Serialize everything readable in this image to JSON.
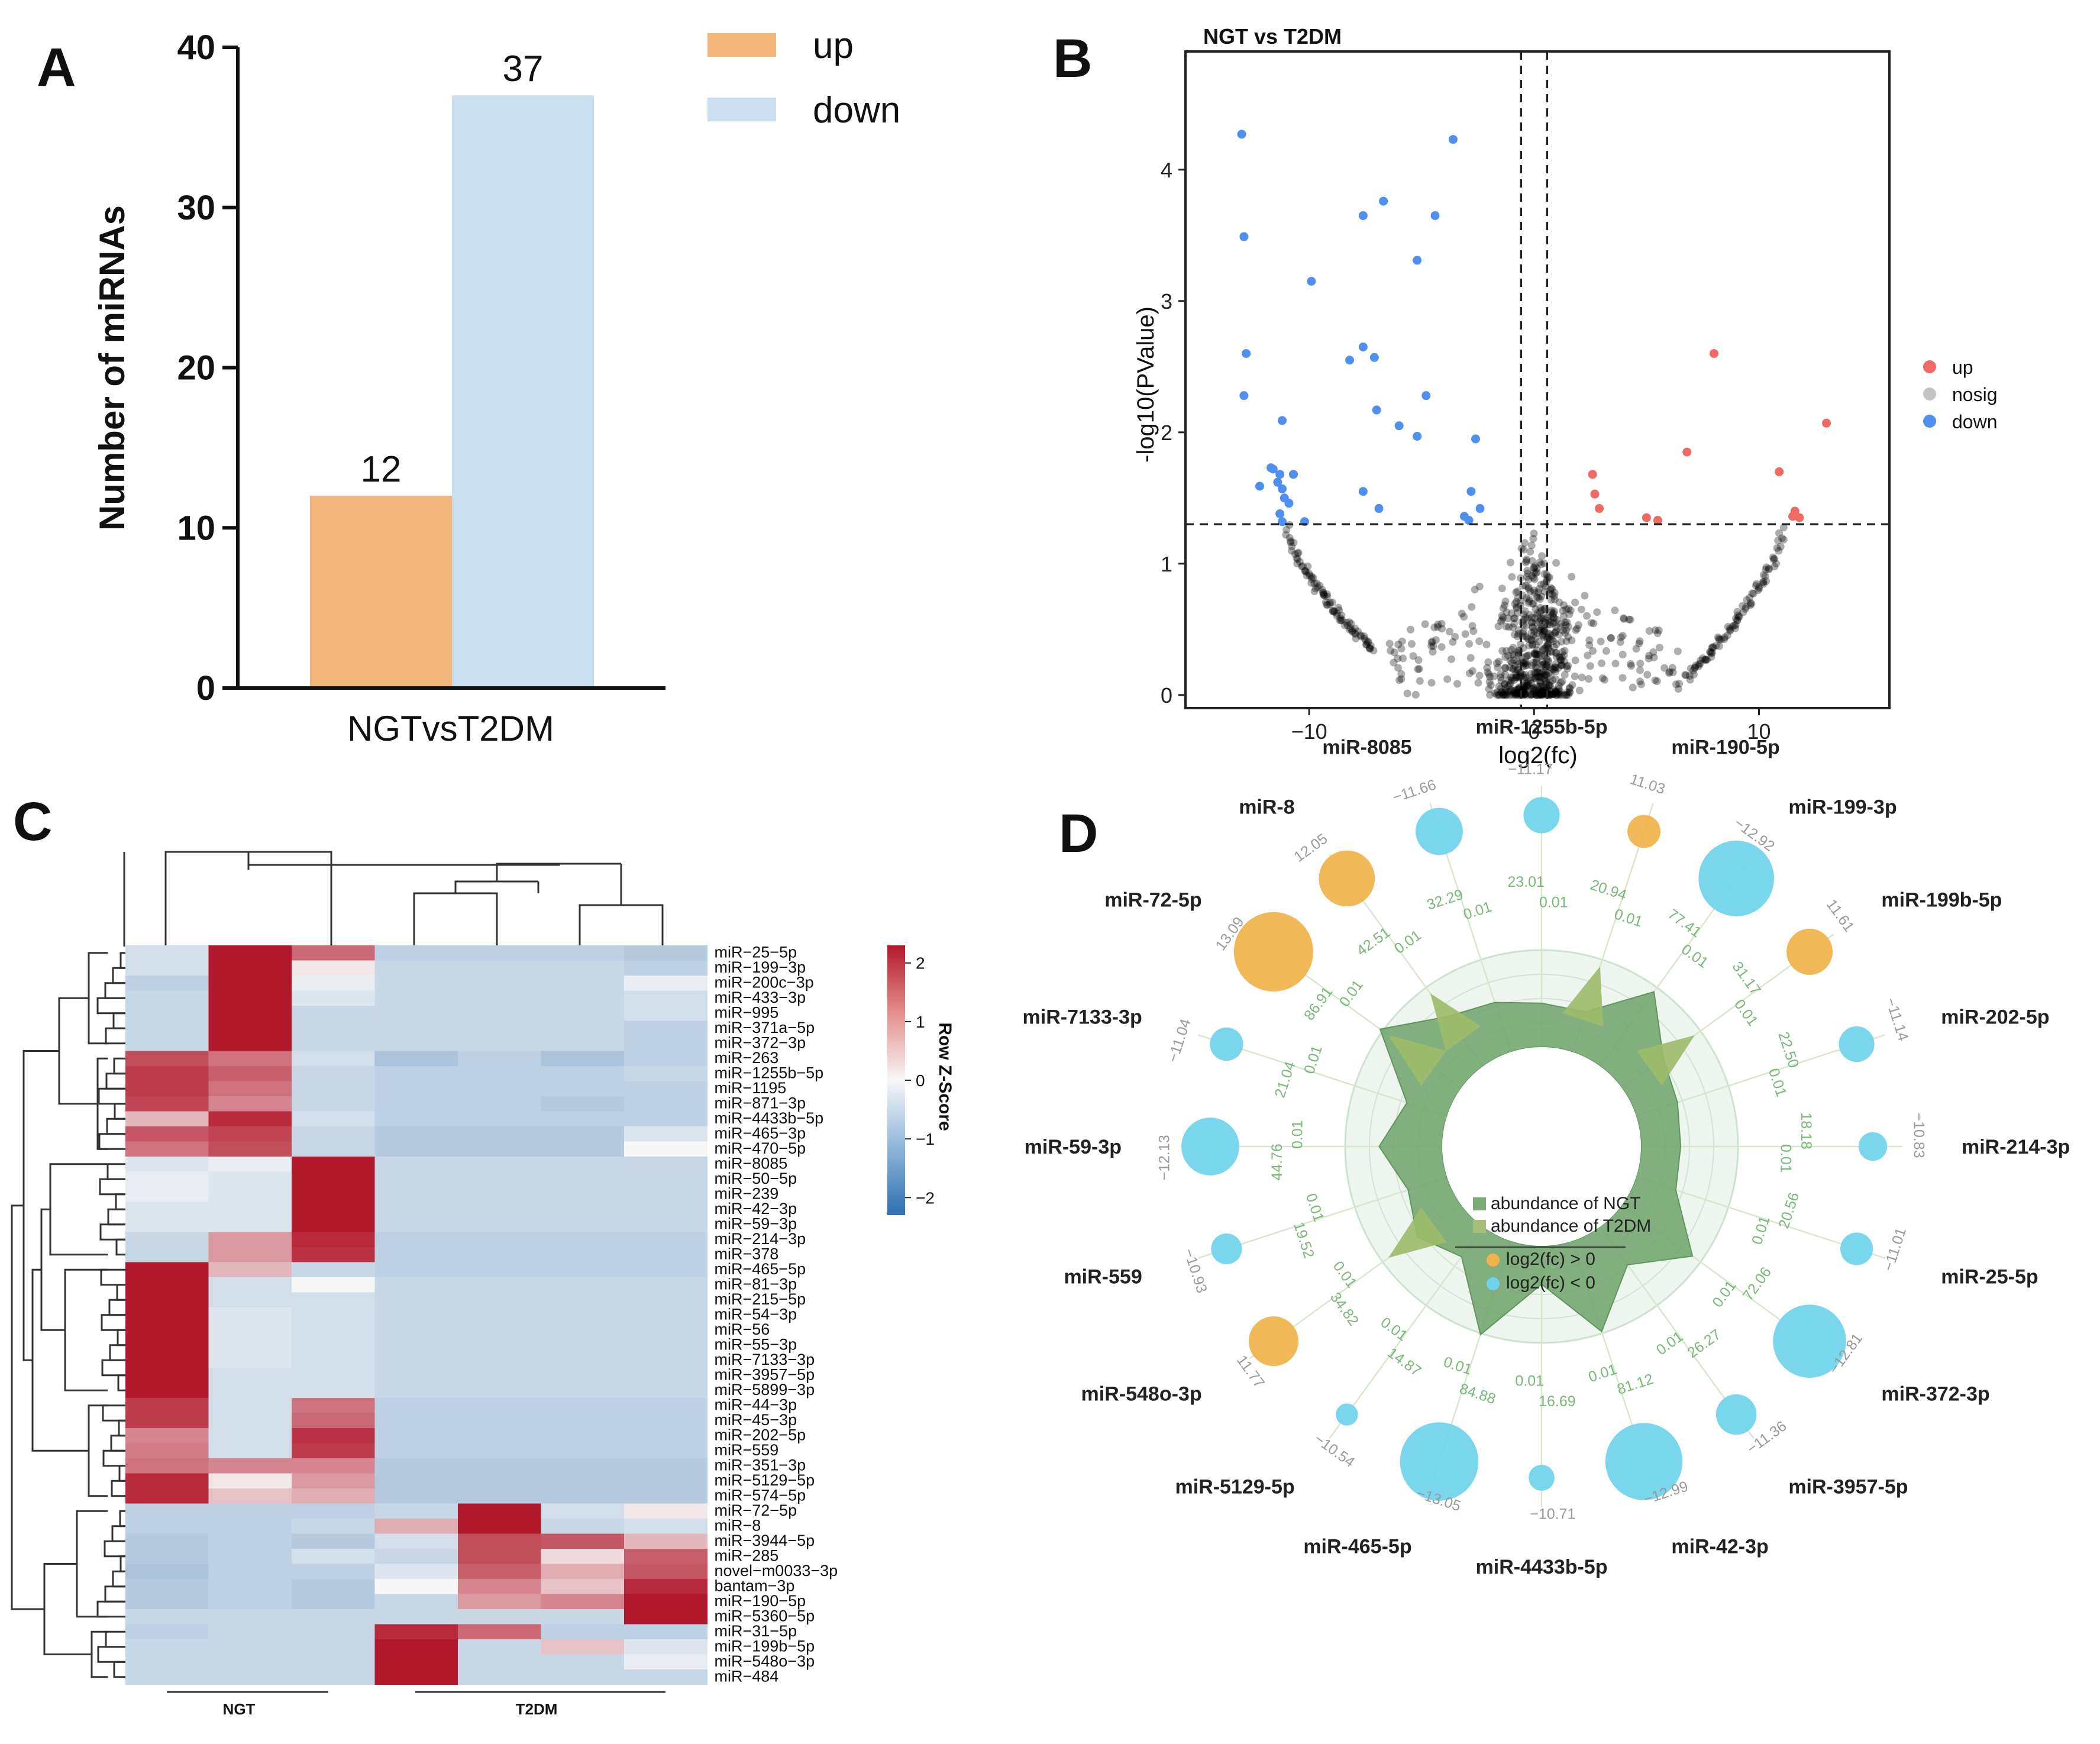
{
  "panels": {
    "a": "A",
    "b": "B",
    "c": "C",
    "d": "D"
  },
  "chart_data": [
    {
      "id": "A",
      "type": "bar",
      "categories": [
        "NGTvsT2DM"
      ],
      "series": [
        {
          "name": "up",
          "values": [
            12
          ],
          "color": "#f2b67a"
        },
        {
          "name": "down",
          "values": [
            37
          ],
          "color": "#c9dff0"
        }
      ],
      "data_labels": [
        "12",
        "37"
      ],
      "ylabel": "Number of miRNAs",
      "xlabel": "NGTvsT2DM",
      "ylim": [
        0,
        40
      ],
      "yticks": [
        "0",
        "10",
        "20",
        "30",
        "40"
      ],
      "legend": [
        "up",
        "down"
      ]
    },
    {
      "id": "B",
      "type": "scatter",
      "title": "NGT vs T2DM",
      "xlabel": "log2(fc)",
      "ylabel": "-log10(PValue)",
      "xlim": [
        -15.5,
        15.8
      ],
      "ylim": [
        -0.1,
        4.9
      ],
      "xticks": [
        "-10",
        "0",
        "10"
      ],
      "yticks": [
        "0",
        "1",
        "2",
        "3",
        "4"
      ],
      "thresholds": {
        "x": [
          -0.58,
          0.58
        ],
        "y": 1.3
      },
      "legend": [
        "up",
        "nosig",
        "down"
      ],
      "colors": {
        "up": "#ee6a63",
        "nosig": "#b3b3b3",
        "down": "#4f8ff0"
      },
      "series": [
        {
          "name": "up",
          "points": [
            [
              8.0,
              2.6
            ],
            [
              13.0,
              2.07
            ],
            [
              6.8,
              1.85
            ],
            [
              10.9,
              1.7
            ],
            [
              2.6,
              1.68
            ],
            [
              2.7,
              1.53
            ],
            [
              2.9,
              1.42
            ],
            [
              5.0,
              1.35
            ],
            [
              5.5,
              1.33
            ],
            [
              11.6,
              1.4
            ],
            [
              11.8,
              1.35
            ],
            [
              11.5,
              1.36
            ]
          ]
        },
        {
          "name": "down",
          "points": [
            [
              -13.0,
              4.27
            ],
            [
              -3.6,
              4.23
            ],
            [
              -6.7,
              3.76
            ],
            [
              -7.6,
              3.65
            ],
            [
              -4.4,
              3.65
            ],
            [
              -12.9,
              3.49
            ],
            [
              -5.2,
              3.31
            ],
            [
              -9.9,
              3.15
            ],
            [
              -7.6,
              2.65
            ],
            [
              -12.8,
              2.6
            ],
            [
              -7.1,
              2.57
            ],
            [
              -8.2,
              2.55
            ],
            [
              -12.9,
              2.28
            ],
            [
              -4.8,
              2.28
            ],
            [
              -7.0,
              2.17
            ],
            [
              -11.2,
              2.09
            ],
            [
              -6.0,
              2.05
            ],
            [
              -5.2,
              1.97
            ],
            [
              -2.6,
              1.95
            ],
            [
              -11.7,
              1.73
            ],
            [
              -11.6,
              1.72
            ],
            [
              -11.3,
              1.68
            ],
            [
              -10.7,
              1.68
            ],
            [
              -11.4,
              1.62
            ],
            [
              -12.2,
              1.59
            ],
            [
              -11.2,
              1.57
            ],
            [
              -11.1,
              1.5
            ],
            [
              -7.6,
              1.55
            ],
            [
              -2.8,
              1.55
            ],
            [
              -10.9,
              1.46
            ],
            [
              -2.4,
              1.42
            ],
            [
              -6.9,
              1.42
            ],
            [
              -11.3,
              1.38
            ],
            [
              -3.1,
              1.36
            ],
            [
              -2.9,
              1.33
            ],
            [
              -11.2,
              1.32
            ],
            [
              -10.2,
              1.32
            ]
          ]
        }
      ],
      "nosig_curves": [
        {
          "x_from": -11.0,
          "x_to": -7.2,
          "y_from": 1.28,
          "y_to": 0.35
        },
        {
          "x_from": 11.1,
          "x_to": 6.8,
          "y_from": 1.28,
          "y_to": 0.13
        }
      ]
    },
    {
      "id": "C",
      "type": "heatmap",
      "rows": [
        "miR-25-5p",
        "miR-199-3p",
        "miR-200c-3p",
        "miR-433-3p",
        "miR-995",
        "miR-371a-5p",
        "miR-372-3p",
        "miR-263",
        "miR-1255b-5p",
        "miR-1195",
        "miR-871-3p",
        "miR-4433b-5p",
        "miR-465-3p",
        "miR-470-5p",
        "miR-8085",
        "miR-50-5p",
        "miR-239",
        "miR-42-3p",
        "miR-59-3p",
        "miR-214-3p",
        "miR-378",
        "miR-465-5p",
        "miR-81-3p",
        "miR-215-5p",
        "miR-54-3p",
        "miR-56",
        "miR-55-3p",
        "miR-7133-3p",
        "miR-3957-5p",
        "miR-5899-3p",
        "miR-44-3p",
        "miR-45-3p",
        "miR-202-5p",
        "miR-559",
        "miR-351-3p",
        "miR-5129-5p",
        "miR-574-5p",
        "miR-72-5p",
        "miR-8",
        "miR-3944-5p",
        "miR-285",
        "novel-m0033-3p",
        "bantam-3p",
        "miR-190-5p",
        "miR-5360-5p",
        "miR-31-5p",
        "miR-199b-5p",
        "miR-548o-3p",
        "miR-484"
      ],
      "groups": [
        "NGT",
        "T2DM"
      ],
      "values": [
        [
          -0.3,
          2.2,
          1.3,
          -0.5,
          -0.5,
          -0.5,
          -0.6
        ],
        [
          -0.3,
          2.2,
          0.1,
          -0.4,
          -0.4,
          -0.4,
          -0.5
        ],
        [
          -0.5,
          2.2,
          -0.1,
          -0.4,
          -0.4,
          -0.4,
          -0.1
        ],
        [
          -0.4,
          2.2,
          -0.2,
          -0.4,
          -0.4,
          -0.4,
          -0.3
        ],
        [
          -0.4,
          2.2,
          -0.4,
          -0.4,
          -0.4,
          -0.4,
          -0.3
        ],
        [
          -0.4,
          2.2,
          -0.4,
          -0.4,
          -0.4,
          -0.4,
          -0.5
        ],
        [
          -0.4,
          2.2,
          -0.4,
          -0.4,
          -0.4,
          -0.4,
          -0.5
        ],
        [
          1.6,
          1.2,
          -0.3,
          -0.7,
          -0.5,
          -0.7,
          -0.5
        ],
        [
          1.8,
          1.4,
          -0.4,
          -0.5,
          -0.5,
          -0.5,
          -0.4
        ],
        [
          1.8,
          1.2,
          -0.4,
          -0.5,
          -0.5,
          -0.5,
          -0.5
        ],
        [
          1.7,
          1.0,
          -0.4,
          -0.5,
          -0.5,
          -0.6,
          -0.5
        ],
        [
          0.5,
          2.0,
          -0.3,
          -0.5,
          -0.5,
          -0.5,
          -0.5
        ],
        [
          1.5,
          1.7,
          -0.4,
          -0.6,
          -0.6,
          -0.6,
          -0.2
        ],
        [
          1.2,
          1.6,
          -0.4,
          -0.6,
          -0.6,
          -0.6,
          0.0
        ],
        [
          -0.2,
          -0.1,
          2.2,
          -0.4,
          -0.4,
          -0.4,
          -0.4
        ],
        [
          -0.1,
          -0.2,
          2.2,
          -0.4,
          -0.4,
          -0.4,
          -0.4
        ],
        [
          -0.1,
          -0.2,
          2.2,
          -0.4,
          -0.4,
          -0.4,
          -0.4
        ],
        [
          -0.2,
          -0.2,
          2.2,
          -0.4,
          -0.4,
          -0.4,
          -0.4
        ],
        [
          -0.2,
          -0.2,
          2.2,
          -0.4,
          -0.4,
          -0.4,
          -0.4
        ],
        [
          -0.4,
          0.8,
          2.0,
          -0.5,
          -0.5,
          -0.5,
          -0.5
        ],
        [
          -0.4,
          0.8,
          1.9,
          -0.5,
          -0.5,
          -0.5,
          -0.5
        ],
        [
          2.2,
          0.5,
          -0.4,
          -0.5,
          -0.5,
          -0.5,
          -0.5
        ],
        [
          2.2,
          -0.3,
          0.0,
          -0.4,
          -0.4,
          -0.4,
          -0.4
        ],
        [
          2.2,
          -0.3,
          -0.3,
          -0.4,
          -0.4,
          -0.4,
          -0.4
        ],
        [
          2.2,
          -0.2,
          -0.3,
          -0.4,
          -0.4,
          -0.4,
          -0.4
        ],
        [
          2.2,
          -0.2,
          -0.3,
          -0.4,
          -0.4,
          -0.4,
          -0.4
        ],
        [
          2.2,
          -0.2,
          -0.3,
          -0.4,
          -0.4,
          -0.4,
          -0.4
        ],
        [
          2.2,
          -0.2,
          -0.3,
          -0.4,
          -0.4,
          -0.4,
          -0.4
        ],
        [
          2.2,
          -0.3,
          -0.3,
          -0.4,
          -0.4,
          -0.4,
          -0.4
        ],
        [
          2.2,
          -0.3,
          -0.3,
          -0.4,
          -0.4,
          -0.4,
          -0.4
        ],
        [
          1.8,
          -0.3,
          1.2,
          -0.5,
          -0.5,
          -0.5,
          -0.5
        ],
        [
          1.8,
          -0.3,
          1.3,
          -0.5,
          -0.5,
          -0.5,
          -0.5
        ],
        [
          1.0,
          -0.3,
          1.9,
          -0.5,
          -0.5,
          -0.5,
          -0.5
        ],
        [
          1.1,
          -0.3,
          1.8,
          -0.5,
          -0.5,
          -0.5,
          -0.5
        ],
        [
          1.2,
          1.0,
          1.0,
          -0.6,
          -0.6,
          -0.6,
          -0.6
        ],
        [
          2.0,
          0.1,
          0.8,
          -0.6,
          -0.6,
          -0.6,
          -0.6
        ],
        [
          2.0,
          0.4,
          0.6,
          -0.6,
          -0.6,
          -0.6,
          -0.6
        ],
        [
          -0.5,
          -0.5,
          -0.5,
          -0.4,
          2.2,
          -0.3,
          0.1
        ],
        [
          -0.5,
          -0.5,
          -0.4,
          0.6,
          2.2,
          -0.4,
          -0.3
        ],
        [
          -0.6,
          -0.5,
          -0.6,
          -0.3,
          1.6,
          1.5,
          0.5
        ],
        [
          -0.6,
          -0.5,
          -0.3,
          -0.4,
          1.6,
          0.2,
          1.4
        ],
        [
          -0.7,
          -0.5,
          -0.5,
          -0.2,
          1.4,
          0.6,
          1.5
        ],
        [
          -0.6,
          -0.5,
          -0.6,
          0.0,
          1.0,
          0.4,
          2.0
        ],
        [
          -0.6,
          -0.5,
          -0.6,
          -0.4,
          0.8,
          1.0,
          2.2
        ],
        [
          -0.4,
          -0.4,
          -0.4,
          -0.4,
          -0.4,
          -0.4,
          2.2
        ],
        [
          -0.5,
          -0.4,
          -0.4,
          2.0,
          1.3,
          -0.5,
          -0.5
        ],
        [
          -0.4,
          -0.4,
          -0.4,
          2.2,
          -0.4,
          0.4,
          -0.2
        ],
        [
          -0.4,
          -0.4,
          -0.4,
          2.2,
          -0.4,
          -0.4,
          -0.1
        ],
        [
          -0.4,
          -0.4,
          -0.4,
          2.2,
          -0.4,
          -0.4,
          -0.4
        ]
      ],
      "colorbar": {
        "title": "Row Z-Score",
        "ticks": [
          "2",
          "1",
          "0",
          "-1",
          "-2"
        ],
        "range": [
          -2.3,
          2.3
        ]
      }
    },
    {
      "id": "D",
      "type": "radar",
      "legend": [
        "abundance of NGT",
        "abundance of T2DM",
        "log2(fc) > 0",
        "log2(fc) < 0"
      ],
      "colors": {
        "ngt": "#6da36a",
        "t2dm": "#9cbb6a",
        "pos": "#f0b24a",
        "neg": "#6fd3ec"
      },
      "items": [
        {
          "name": "miR-1255b-5p",
          "fc": "-11.17",
          "a": "23.01",
          "b": "0.01",
          "fcv": -11.17,
          "av": 23.01
        },
        {
          "name": "miR-190-5p",
          "fc": "11.03",
          "a": "20.94",
          "b": "0.01",
          "fcv": 11.03,
          "av": 20.94
        },
        {
          "name": "miR-199-3p",
          "fc": "-12.92",
          "a": "77.41",
          "b": "0.01",
          "fcv": -12.92,
          "av": 77.41
        },
        {
          "name": "miR-199b-5p",
          "fc": "11.61",
          "a": "31.17",
          "b": "0.01",
          "fcv": 11.61,
          "av": 31.17
        },
        {
          "name": "miR-202-5p",
          "fc": "-11.14",
          "a": "22.50",
          "b": "0.01",
          "fcv": -11.14,
          "av": 22.5
        },
        {
          "name": "miR-214-3p",
          "fc": "-10.83",
          "a": "18.18",
          "b": "0.01",
          "fcv": -10.83,
          "av": 18.18
        },
        {
          "name": "miR-25-5p",
          "fc": "-11.01",
          "a": "20.56",
          "b": "0.01",
          "fcv": -11.01,
          "av": 20.56
        },
        {
          "name": "miR-372-3p",
          "fc": "-12.81",
          "a": "72.06",
          "b": "0.01",
          "fcv": -12.81,
          "av": 72.06
        },
        {
          "name": "miR-3957-5p",
          "fc": "-11.36",
          "a": "26.27",
          "b": "0.01",
          "fcv": -11.36,
          "av": 26.27
        },
        {
          "name": "miR-42-3p",
          "fc": "-12.99",
          "a": "81.12",
          "b": "0.01",
          "fcv": -12.99,
          "av": 81.12
        },
        {
          "name": "miR-4433b-5p",
          "fc": "-10.71",
          "a": "16.69",
          "b": "0.01",
          "fcv": -10.71,
          "av": 16.69
        },
        {
          "name": "miR-465-5p",
          "fc": "-13.05",
          "a": "84.88",
          "b": "0.01",
          "fcv": -13.05,
          "av": 84.88
        },
        {
          "name": "miR-5129-5p",
          "fc": "-10.54",
          "a": "14.87",
          "b": "0.01",
          "fcv": -10.54,
          "av": 14.87
        },
        {
          "name": "miR-548o-3p",
          "fc": "11.77",
          "a": "34.82",
          "b": "0.01",
          "fcv": 11.77,
          "av": 34.82
        },
        {
          "name": "miR-559",
          "fc": "-10.93",
          "a": "19.52",
          "b": "0.01",
          "fcv": -10.93,
          "av": 19.52
        },
        {
          "name": "miR-59-3p",
          "fc": "-12.13",
          "a": "44.76",
          "b": "0.01",
          "fcv": -12.13,
          "av": 44.76
        },
        {
          "name": "miR-7133-3p",
          "fc": "-11.04",
          "a": "21.04",
          "b": "0.01",
          "fcv": -11.04,
          "av": 21.04
        },
        {
          "name": "miR-72-5p",
          "fc": "13.09",
          "a": "86.91",
          "b": "0.01",
          "fcv": 13.09,
          "av": 86.91
        },
        {
          "name": "miR-8",
          "fc": "12.05",
          "a": "42.51",
          "b": "0.01",
          "fcv": 12.05,
          "av": 42.51
        },
        {
          "name": "miR-8085",
          "fc": "-11.66",
          "a": "32.29",
          "b": "0.01",
          "fcv": -11.66,
          "av": 32.29
        }
      ]
    }
  ]
}
